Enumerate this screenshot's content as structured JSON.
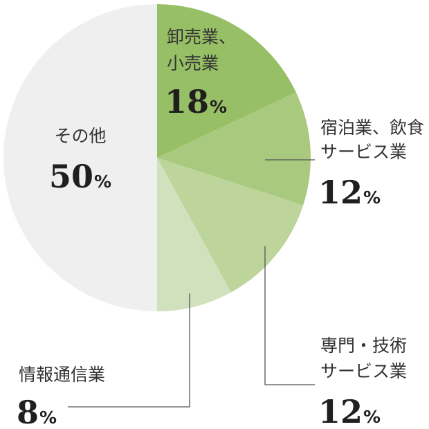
{
  "chart_data": {
    "type": "pie",
    "start": "top",
    "direction": "clockwise",
    "slices": [
      {
        "label_lines": [
          "卸売業、",
          "小売業"
        ],
        "value": 18,
        "value_text": "18",
        "unit": "%",
        "color": "#97bf65"
      },
      {
        "label_lines": [
          "宿泊業、飲食",
          "サービス業"
        ],
        "value": 12,
        "value_text": "12",
        "unit": "%",
        "color": "#a9c97f"
      },
      {
        "label_lines": [
          "専門・技術",
          "サービス業"
        ],
        "value": 12,
        "value_text": "12",
        "unit": "%",
        "color": "#bdd49b"
      },
      {
        "label_lines": [
          "情報通信業"
        ],
        "value": 8,
        "value_text": "8",
        "unit": "%",
        "color": "#d2e1bd"
      },
      {
        "label_lines": [
          "その他"
        ],
        "value": 50,
        "value_text": "50",
        "unit": "%",
        "color": "#efefef"
      }
    ]
  }
}
